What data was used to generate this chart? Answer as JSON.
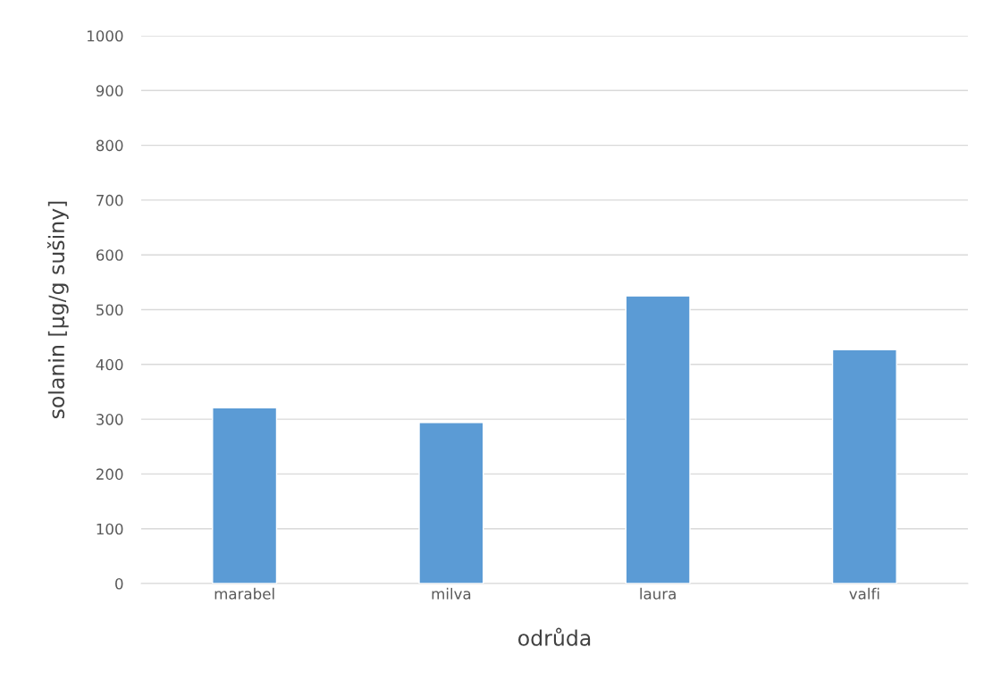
{
  "chart_data": {
    "type": "bar",
    "xlabel": "odrůda",
    "ylabel": "solanin [µg/g sušiny]",
    "categories": [
      "marabel",
      "milva",
      "laura",
      "valfi"
    ],
    "values": [
      321,
      294,
      525,
      427
    ],
    "color": "#5b9bd5",
    "ylim": [
      0,
      1000
    ],
    "yticks": [
      0,
      100,
      200,
      300,
      400,
      500,
      600,
      700,
      800,
      900,
      1000
    ],
    "grid": "y"
  }
}
